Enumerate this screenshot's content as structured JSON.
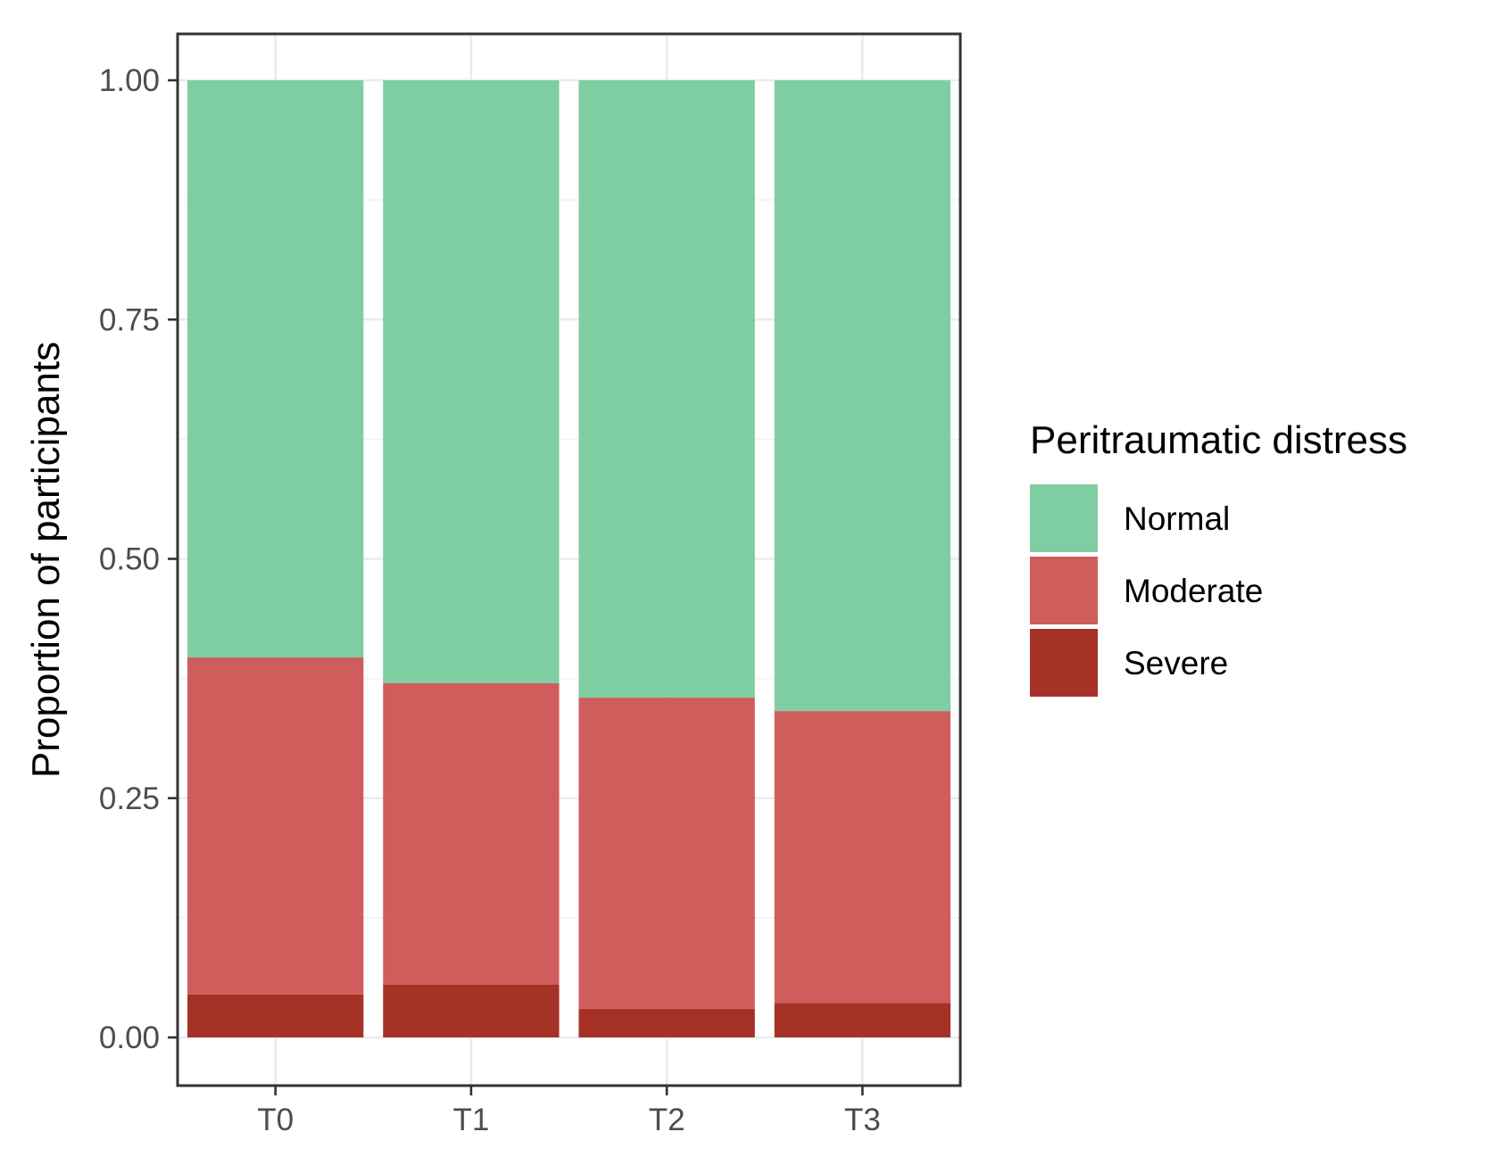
{
  "chart_data": {
    "type": "bar",
    "stacked": true,
    "categories": [
      "T0",
      "T1",
      "T2",
      "T3"
    ],
    "series": [
      {
        "name": "Severe",
        "values": [
          0.045,
          0.055,
          0.03,
          0.036
        ]
      },
      {
        "name": "Moderate",
        "values": [
          0.352,
          0.315,
          0.325,
          0.305
        ]
      },
      {
        "name": "Normal",
        "values": [
          0.603,
          0.63,
          0.645,
          0.659
        ]
      }
    ],
    "title": "",
    "xlabel": "",
    "ylabel": "Proportion of participants",
    "ylim": [
      -0.05,
      1.05
    ],
    "yticks": [
      "0.00",
      "0.25",
      "0.50",
      "0.75",
      "1.00"
    ],
    "grid": true,
    "legend": {
      "title": "Peritraumatic distress",
      "placement": "right",
      "order": [
        "Normal",
        "Moderate",
        "Severe"
      ]
    },
    "colors": {
      "Normal": "#7FCEA2",
      "Moderate": "#CF5D5C",
      "Severe": "#A63227"
    }
  }
}
